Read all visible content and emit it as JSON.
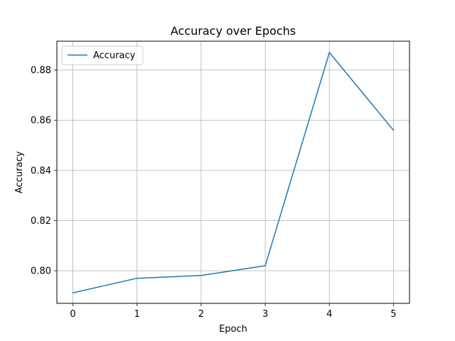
{
  "chart_data": {
    "type": "line",
    "title": "Accuracy over Epochs",
    "xlabel": "Epoch",
    "ylabel": "Accuracy",
    "x": [
      0,
      1,
      2,
      3,
      4,
      5
    ],
    "series": [
      {
        "name": "Accuracy",
        "color": "#1f77b4",
        "values": [
          0.7912,
          0.797,
          0.7981,
          0.802,
          0.887,
          0.856
        ]
      }
    ],
    "xlim": [
      -0.25,
      5.25
    ],
    "ylim": [
      0.787,
      0.8915
    ],
    "xticks": [
      "0",
      "1",
      "2",
      "3",
      "4",
      "5"
    ],
    "yticks": [
      "0.80",
      "0.82",
      "0.84",
      "0.86",
      "0.88"
    ],
    "grid": true,
    "legend_position": "top-left"
  }
}
